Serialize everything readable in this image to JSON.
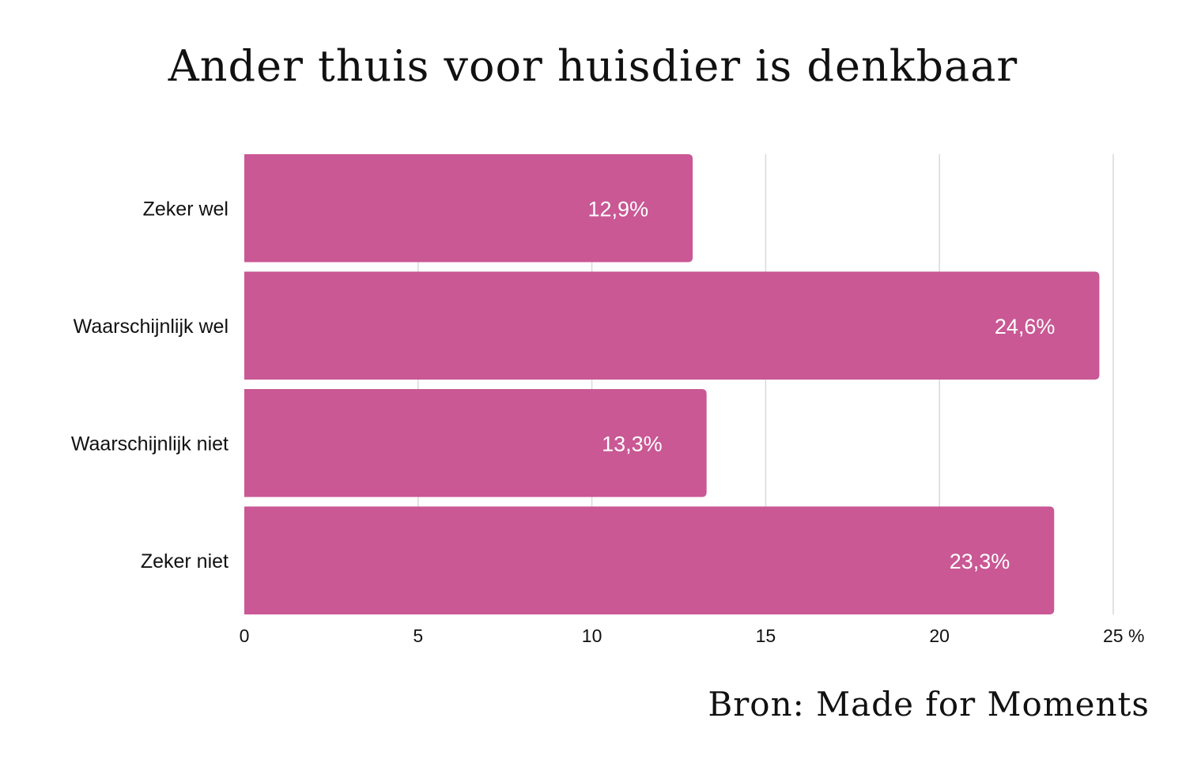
{
  "title": "Ander thuis voor huisdier is denkbaar",
  "source": "Bron: Made for Moments",
  "colors": {
    "bar": "#c95894",
    "grid": "#d9d9d9",
    "text": "#111111",
    "bar_label": "#ffffff"
  },
  "chart_data": {
    "type": "bar",
    "orientation": "horizontal",
    "title": "Ander thuis voor huisdier is denkbaar",
    "categories": [
      "Zeker wel",
      "Waarschijnlijk wel",
      "Waarschijnlijk niet",
      "Zeker niet"
    ],
    "values": [
      12.9,
      24.6,
      13.3,
      23.3
    ],
    "data_labels": [
      "12,9%",
      "24,6%",
      "13,3%",
      "23,3%"
    ],
    "xlim": [
      0,
      25
    ],
    "xticks": [
      0,
      5,
      10,
      15,
      20,
      25
    ],
    "xtick_labels": [
      "0",
      "5",
      "10",
      "15",
      "20",
      "25 %"
    ],
    "xlabel": "",
    "ylabel": "",
    "grid": "vertical",
    "legend": "none"
  }
}
